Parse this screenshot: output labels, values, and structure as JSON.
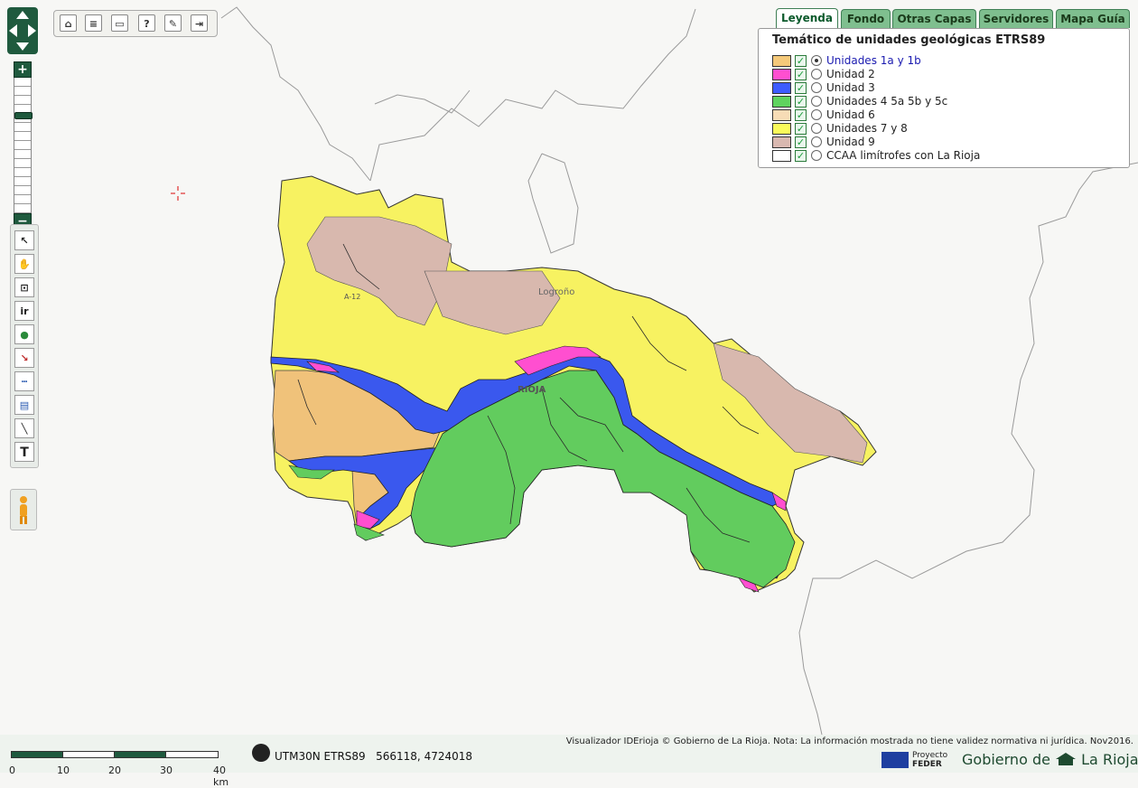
{
  "toolbar": {
    "items": [
      "home-icon",
      "list-icon",
      "print-icon",
      "help-icon",
      "comment-icon",
      "exit-icon"
    ],
    "help_glyph": "?"
  },
  "zoom": {
    "plus": "+",
    "minus": "−",
    "level_fraction": 0.25
  },
  "tools": [
    "info-arrow-icon",
    "hand-pan-icon",
    "zoom-box-icon",
    "goto-icon",
    "globe-icon",
    "xy-coordinate-icon",
    "measure-distance-icon",
    "measure-area-icon",
    "draw-line-icon",
    "text-icon"
  ],
  "tool_labels": {
    "goto": "ir",
    "text": "T"
  },
  "tabs": [
    "Leyenda",
    "Fondo",
    "Otras Capas",
    "Servidores",
    "Mapa Guía"
  ],
  "active_tab": "Leyenda",
  "legend": {
    "title": "Temático de unidades geológicas ETRS89",
    "items": [
      {
        "label": "Unidades 1a y 1b",
        "color": "#f5c97a",
        "checked": true,
        "selected": true
      },
      {
        "label": "Unidad 2",
        "color": "#ff4fd0",
        "checked": true,
        "selected": false
      },
      {
        "label": "Unidad 3",
        "color": "#3d5cff",
        "checked": true,
        "selected": false
      },
      {
        "label": "Unidades 4 5a 5b y 5c",
        "color": "#5fd35f",
        "checked": true,
        "selected": false
      },
      {
        "label": "Unidad 6",
        "color": "#f7dcb6",
        "checked": true,
        "selected": false
      },
      {
        "label": "Unidades 7 y 8",
        "color": "#fafa5a",
        "checked": true,
        "selected": false
      },
      {
        "label": "Unidad 9",
        "color": "#d9b8b0",
        "checked": true,
        "selected": false
      },
      {
        "label": "CCAA limítrofes con La Rioja",
        "color": "#ffffff",
        "checked": true,
        "selected": false
      }
    ]
  },
  "map_labels": [
    "A-12",
    "Logroño",
    "RIOJA"
  ],
  "scale_bar": {
    "ticks": [
      "0",
      "10",
      "20",
      "30",
      "40 km"
    ]
  },
  "coordinates": {
    "crs": "UTM30N ETRS89",
    "value": "566118, 4724018"
  },
  "credits": "Visualizador IDErioja © Gobierno de La Rioja. Nota: La información mostrada no tiene validez normativa ni jurídica. Nov2016.",
  "feder": {
    "line1": "Proyecto",
    "line2": "FEDER"
  },
  "brand": {
    "prefix": "Gobierno de",
    "suffix": "La Rioja"
  },
  "colors": {
    "accent": "#1f5a3e",
    "tab": "#7fbf8f"
  }
}
